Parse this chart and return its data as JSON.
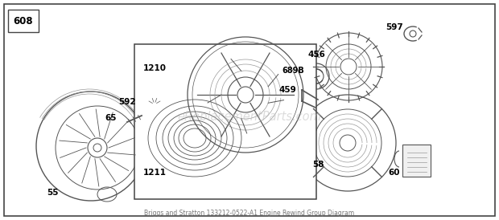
{
  "bg_color": "#ffffff",
  "border_color": "#444444",
  "watermark": "eReplacementParts.com",
  "watermark_color": "#bbbbbb",
  "watermark_alpha": 0.5,
  "section_label": "608",
  "fig_w": 6.2,
  "fig_h": 2.74,
  "dpi": 100,
  "label_fontsize": 7.5,
  "section_fontsize": 8.5,
  "part_color": "#555555",
  "part_color_light": "#999999"
}
